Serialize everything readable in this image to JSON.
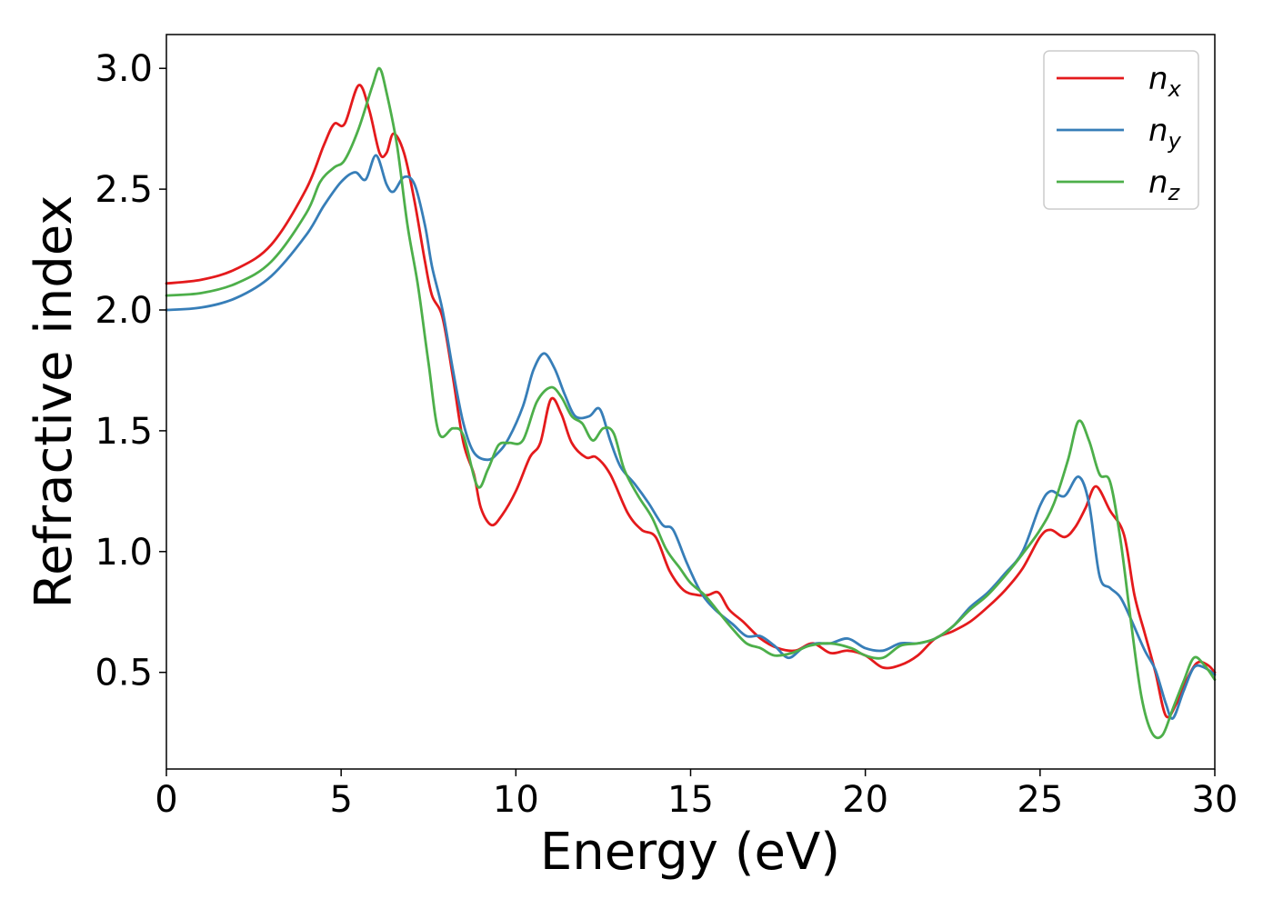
{
  "chart_data": {
    "type": "line",
    "title": "",
    "xlabel": "Energy (eV)",
    "ylabel": "Refractive index",
    "xlim": [
      0,
      30
    ],
    "ylim": [
      0.1,
      3.14
    ],
    "xticks": [
      0,
      5,
      10,
      15,
      20,
      25,
      30
    ],
    "yticks": [
      0.5,
      1.0,
      1.5,
      2.0,
      2.5,
      3.0
    ],
    "xtick_labels": [
      "0",
      "5",
      "10",
      "15",
      "20",
      "25",
      "30"
    ],
    "ytick_labels": [
      "0.5",
      "1.0",
      "1.5",
      "2.0",
      "2.5",
      "3.0"
    ],
    "grid": false,
    "legend_position": "top-right",
    "series": [
      {
        "name": "n",
        "subscript": "x",
        "color": "#e41a1c",
        "points": [
          [
            0,
            2.11
          ],
          [
            1,
            2.125
          ],
          [
            2,
            2.17
          ],
          [
            3,
            2.27
          ],
          [
            4,
            2.5
          ],
          [
            4.5,
            2.68
          ],
          [
            4.8,
            2.77
          ],
          [
            5.1,
            2.77
          ],
          [
            5.5,
            2.93
          ],
          [
            5.8,
            2.83
          ],
          [
            6.1,
            2.65
          ],
          [
            6.3,
            2.65
          ],
          [
            6.5,
            2.73
          ],
          [
            6.8,
            2.65
          ],
          [
            7.1,
            2.45
          ],
          [
            7.4,
            2.2
          ],
          [
            7.6,
            2.06
          ],
          [
            7.9,
            1.97
          ],
          [
            8.2,
            1.72
          ],
          [
            8.5,
            1.45
          ],
          [
            8.8,
            1.32
          ],
          [
            9.0,
            1.18
          ],
          [
            9.3,
            1.11
          ],
          [
            9.6,
            1.15
          ],
          [
            10.0,
            1.25
          ],
          [
            10.4,
            1.39
          ],
          [
            10.7,
            1.45
          ],
          [
            11.0,
            1.63
          ],
          [
            11.3,
            1.57
          ],
          [
            11.6,
            1.45
          ],
          [
            12.0,
            1.39
          ],
          [
            12.3,
            1.39
          ],
          [
            12.7,
            1.32
          ],
          [
            13.2,
            1.16
          ],
          [
            13.6,
            1.09
          ],
          [
            14.0,
            1.06
          ],
          [
            14.4,
            0.92
          ],
          [
            14.8,
            0.84
          ],
          [
            15.2,
            0.82
          ],
          [
            15.5,
            0.82
          ],
          [
            15.8,
            0.83
          ],
          [
            16.1,
            0.76
          ],
          [
            16.5,
            0.71
          ],
          [
            17.0,
            0.64
          ],
          [
            17.5,
            0.6
          ],
          [
            18.0,
            0.59
          ],
          [
            18.5,
            0.62
          ],
          [
            19.0,
            0.58
          ],
          [
            19.5,
            0.59
          ],
          [
            20.0,
            0.57
          ],
          [
            20.5,
            0.52
          ],
          [
            21.0,
            0.53
          ],
          [
            21.5,
            0.57
          ],
          [
            22.0,
            0.64
          ],
          [
            22.5,
            0.67
          ],
          [
            23.0,
            0.71
          ],
          [
            23.5,
            0.77
          ],
          [
            24.0,
            0.84
          ],
          [
            24.5,
            0.93
          ],
          [
            25.0,
            1.06
          ],
          [
            25.3,
            1.09
          ],
          [
            25.7,
            1.06
          ],
          [
            26.0,
            1.1
          ],
          [
            26.3,
            1.18
          ],
          [
            26.6,
            1.27
          ],
          [
            27.0,
            1.17
          ],
          [
            27.4,
            1.07
          ],
          [
            27.7,
            0.82
          ],
          [
            28.0,
            0.66
          ],
          [
            28.3,
            0.5
          ],
          [
            28.6,
            0.32
          ],
          [
            28.9,
            0.37
          ],
          [
            29.2,
            0.47
          ],
          [
            29.5,
            0.54
          ],
          [
            29.8,
            0.53
          ],
          [
            30,
            0.5
          ]
        ]
      },
      {
        "name": "n",
        "subscript": "y",
        "color": "#377eb8",
        "points": [
          [
            0,
            2.0
          ],
          [
            1,
            2.01
          ],
          [
            2,
            2.05
          ],
          [
            3,
            2.14
          ],
          [
            4,
            2.31
          ],
          [
            4.5,
            2.43
          ],
          [
            5.0,
            2.53
          ],
          [
            5.4,
            2.57
          ],
          [
            5.7,
            2.54
          ],
          [
            6.0,
            2.64
          ],
          [
            6.3,
            2.52
          ],
          [
            6.5,
            2.49
          ],
          [
            6.8,
            2.55
          ],
          [
            7.1,
            2.52
          ],
          [
            7.4,
            2.35
          ],
          [
            7.6,
            2.18
          ],
          [
            7.9,
            2.0
          ],
          [
            8.2,
            1.75
          ],
          [
            8.5,
            1.53
          ],
          [
            8.8,
            1.41
          ],
          [
            9.2,
            1.38
          ],
          [
            9.5,
            1.41
          ],
          [
            9.8,
            1.47
          ],
          [
            10.2,
            1.6
          ],
          [
            10.5,
            1.75
          ],
          [
            10.8,
            1.82
          ],
          [
            11.1,
            1.76
          ],
          [
            11.4,
            1.65
          ],
          [
            11.7,
            1.56
          ],
          [
            12.1,
            1.56
          ],
          [
            12.4,
            1.59
          ],
          [
            12.7,
            1.46
          ],
          [
            13.0,
            1.35
          ],
          [
            13.4,
            1.28
          ],
          [
            13.8,
            1.2
          ],
          [
            14.2,
            1.11
          ],
          [
            14.5,
            1.09
          ],
          [
            14.9,
            0.95
          ],
          [
            15.3,
            0.83
          ],
          [
            15.7,
            0.76
          ],
          [
            16.2,
            0.7
          ],
          [
            16.6,
            0.65
          ],
          [
            17.0,
            0.65
          ],
          [
            17.4,
            0.61
          ],
          [
            17.8,
            0.56
          ],
          [
            18.2,
            0.6
          ],
          [
            18.6,
            0.62
          ],
          [
            19.0,
            0.62
          ],
          [
            19.5,
            0.64
          ],
          [
            20.0,
            0.6
          ],
          [
            20.5,
            0.59
          ],
          [
            21.0,
            0.62
          ],
          [
            21.5,
            0.62
          ],
          [
            22.0,
            0.64
          ],
          [
            22.5,
            0.69
          ],
          [
            23.0,
            0.77
          ],
          [
            23.5,
            0.83
          ],
          [
            24.0,
            0.91
          ],
          [
            24.5,
            1.0
          ],
          [
            25.0,
            1.19
          ],
          [
            25.3,
            1.25
          ],
          [
            25.7,
            1.23
          ],
          [
            26.1,
            1.31
          ],
          [
            26.4,
            1.2
          ],
          [
            26.7,
            0.9
          ],
          [
            27.0,
            0.85
          ],
          [
            27.3,
            0.81
          ],
          [
            27.6,
            0.72
          ],
          [
            28.0,
            0.59
          ],
          [
            28.3,
            0.51
          ],
          [
            28.6,
            0.37
          ],
          [
            28.8,
            0.31
          ],
          [
            29.1,
            0.42
          ],
          [
            29.4,
            0.52
          ],
          [
            29.7,
            0.52
          ],
          [
            30,
            0.49
          ]
        ]
      },
      {
        "name": "n",
        "subscript": "z",
        "color": "#4daf4a",
        "points": [
          [
            0,
            2.06
          ],
          [
            1,
            2.07
          ],
          [
            2,
            2.11
          ],
          [
            3,
            2.2
          ],
          [
            4,
            2.4
          ],
          [
            4.4,
            2.53
          ],
          [
            4.8,
            2.59
          ],
          [
            5.1,
            2.62
          ],
          [
            5.5,
            2.75
          ],
          [
            5.9,
            2.93
          ],
          [
            6.1,
            3.0
          ],
          [
            6.3,
            2.9
          ],
          [
            6.6,
            2.68
          ],
          [
            6.9,
            2.35
          ],
          [
            7.2,
            2.1
          ],
          [
            7.5,
            1.78
          ],
          [
            7.8,
            1.49
          ],
          [
            8.2,
            1.51
          ],
          [
            8.5,
            1.48
          ],
          [
            8.9,
            1.27
          ],
          [
            9.2,
            1.34
          ],
          [
            9.5,
            1.44
          ],
          [
            9.8,
            1.45
          ],
          [
            10.2,
            1.46
          ],
          [
            10.6,
            1.62
          ],
          [
            11.0,
            1.68
          ],
          [
            11.3,
            1.64
          ],
          [
            11.6,
            1.56
          ],
          [
            11.9,
            1.53
          ],
          [
            12.2,
            1.46
          ],
          [
            12.5,
            1.51
          ],
          [
            12.8,
            1.49
          ],
          [
            13.1,
            1.34
          ],
          [
            13.5,
            1.23
          ],
          [
            13.9,
            1.14
          ],
          [
            14.3,
            1.01
          ],
          [
            14.7,
            0.93
          ],
          [
            15.0,
            0.87
          ],
          [
            15.4,
            0.82
          ],
          [
            15.8,
            0.75
          ],
          [
            16.2,
            0.68
          ],
          [
            16.6,
            0.62
          ],
          [
            17.0,
            0.6
          ],
          [
            17.4,
            0.57
          ],
          [
            17.9,
            0.58
          ],
          [
            18.4,
            0.61
          ],
          [
            19.0,
            0.62
          ],
          [
            19.6,
            0.6
          ],
          [
            20.0,
            0.57
          ],
          [
            20.5,
            0.56
          ],
          [
            21.0,
            0.61
          ],
          [
            21.5,
            0.62
          ],
          [
            22.0,
            0.64
          ],
          [
            22.5,
            0.69
          ],
          [
            23.0,
            0.76
          ],
          [
            23.5,
            0.82
          ],
          [
            24.0,
            0.9
          ],
          [
            24.5,
            0.99
          ],
          [
            25.0,
            1.09
          ],
          [
            25.4,
            1.2
          ],
          [
            25.8,
            1.38
          ],
          [
            26.1,
            1.54
          ],
          [
            26.4,
            1.46
          ],
          [
            26.7,
            1.32
          ],
          [
            27.0,
            1.29
          ],
          [
            27.3,
            1.05
          ],
          [
            27.6,
            0.71
          ],
          [
            27.9,
            0.4
          ],
          [
            28.2,
            0.25
          ],
          [
            28.5,
            0.24
          ],
          [
            28.8,
            0.35
          ],
          [
            29.1,
            0.46
          ],
          [
            29.4,
            0.56
          ],
          [
            29.7,
            0.53
          ],
          [
            30,
            0.47
          ]
        ]
      }
    ]
  }
}
